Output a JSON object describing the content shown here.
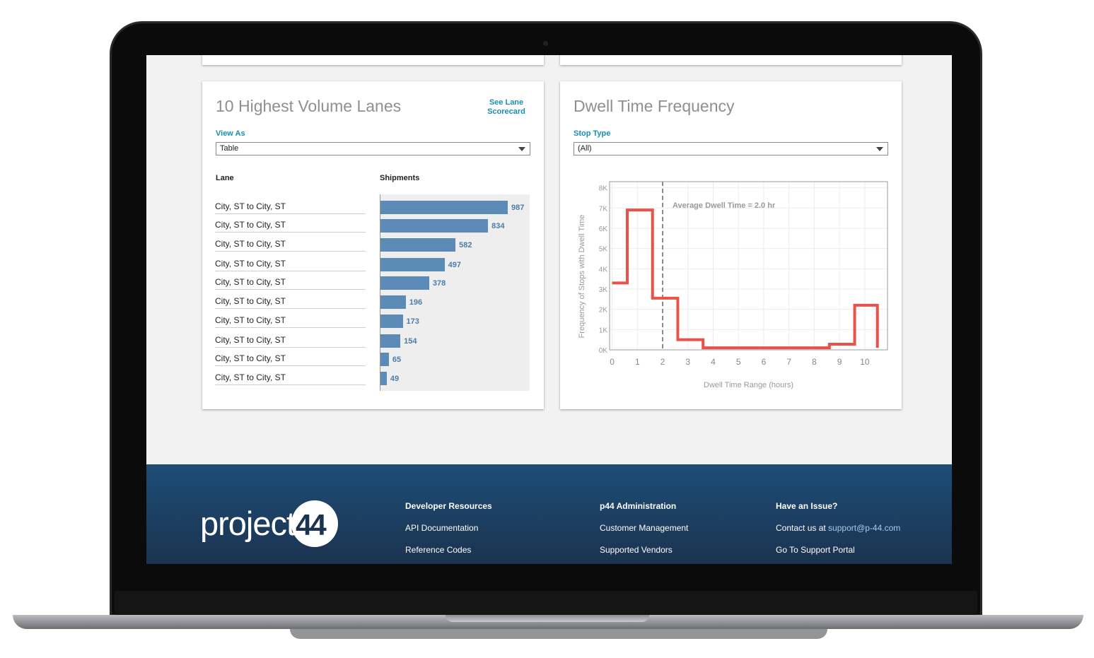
{
  "lanes_card": {
    "title": "10 Highest Volume Lanes",
    "link": "See Lane Scorecard",
    "view_as_label": "View As",
    "view_as_value": "Table",
    "col_lane": "Lane",
    "col_shipments": "Shipments"
  },
  "dwell_card": {
    "title": "Dwell Time Frequency",
    "stop_type_label": "Stop Type",
    "stop_type_value": "(All)"
  },
  "chart_data": [
    {
      "type": "bar",
      "orientation": "horizontal",
      "categories": [
        "City, ST to City, ST",
        "City, ST to City, ST",
        "City, ST to City, ST",
        "City, ST to City, ST",
        "City, ST to City, ST",
        "City, ST to City, ST",
        "City, ST to City, ST",
        "City, ST to City, ST",
        "City, ST to City, ST",
        "City, ST to City, ST"
      ],
      "values": [
        987,
        834,
        582,
        497,
        378,
        196,
        173,
        154,
        65,
        49
      ],
      "xlabel": "Shipments",
      "ylabel": "Lane",
      "color": "#5b8bb6"
    },
    {
      "type": "line",
      "step": true,
      "xlabel": "Dwell Time Range (hours)",
      "ylabel": "Frequency of Stops with Dwell Time",
      "x_ticks": [
        "0",
        "1",
        "2",
        "3",
        "4",
        "5",
        "6",
        "7",
        "8",
        "9",
        "10"
      ],
      "y_ticks": [
        "0K",
        "1K",
        "2K",
        "3K",
        "4K",
        "5K",
        "6K",
        "7K",
        "8K"
      ],
      "xlim": [
        -0.1,
        10.9
      ],
      "ylim": [
        0,
        8300
      ],
      "x": [
        0,
        0.6,
        0.6,
        1.6,
        1.6,
        2.6,
        2.6,
        3.6,
        3.6,
        8.6,
        8.6,
        9.6,
        9.6,
        10.5,
        10.5
      ],
      "y": [
        3300,
        3300,
        6900,
        6900,
        2550,
        2550,
        500,
        500,
        100,
        100,
        280,
        280,
        2200,
        2200,
        100
      ],
      "average_line": {
        "x": 2.0,
        "label": "Average Dwell Time = 2.0 hr"
      },
      "color": "#e8524a",
      "grid": true
    }
  ],
  "footer": {
    "logo_text": "project",
    "logo_number": "44",
    "col1": {
      "heading": "Developer Resources",
      "links": [
        "API Documentation",
        "Reference Codes"
      ]
    },
    "col2": {
      "heading": "p44 Administration",
      "links": [
        "Customer Management",
        "Supported Vendors"
      ]
    },
    "col3": {
      "heading": "Have an Issue?",
      "contact_prefix": "Contact us at ",
      "contact_email": "support@p-44.com",
      "portal_link": "Go To Support Portal"
    }
  }
}
